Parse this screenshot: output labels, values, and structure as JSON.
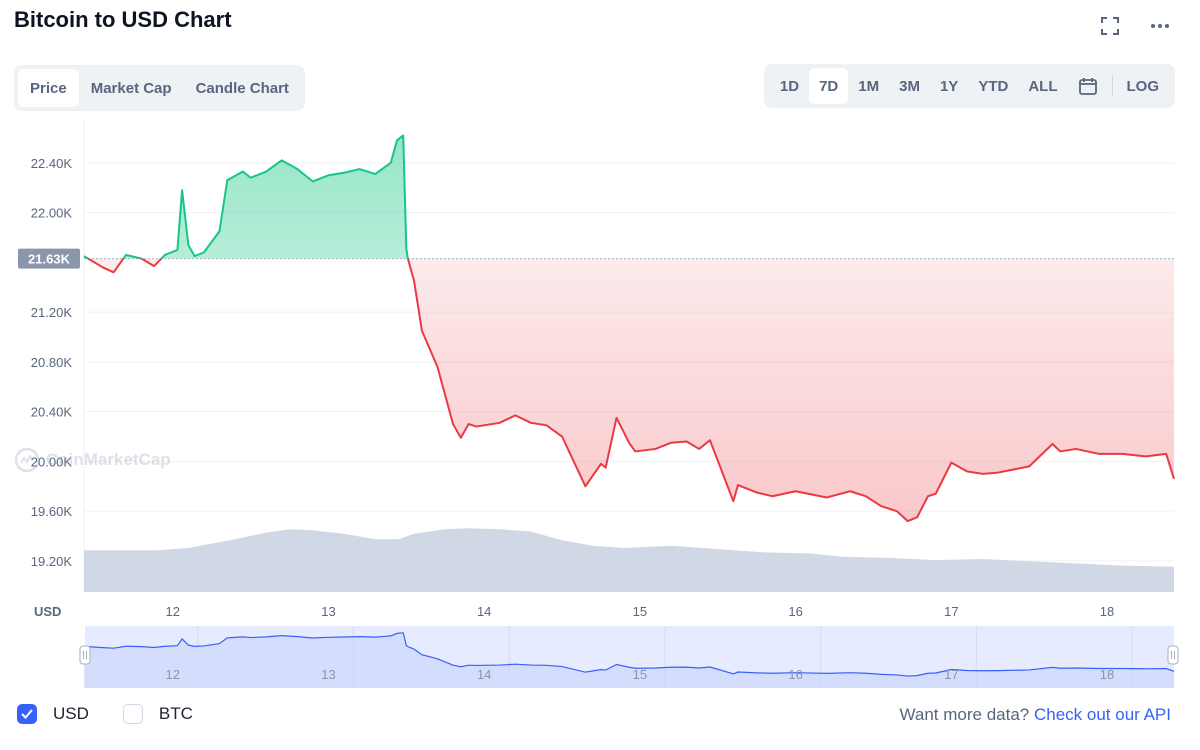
{
  "header": {
    "title": "Bitcoin to USD Chart",
    "fullscreen_icon": "fullscreen-icon",
    "more_icon": "more-dots-icon"
  },
  "tabs": [
    {
      "label": "Price",
      "active": true
    },
    {
      "label": "Market Cap",
      "active": false
    },
    {
      "label": "Candle Chart",
      "active": false
    }
  ],
  "ranges": [
    {
      "label": "1D",
      "active": false
    },
    {
      "label": "7D",
      "active": true
    },
    {
      "label": "1M",
      "active": false
    },
    {
      "label": "3M",
      "active": false
    },
    {
      "label": "1Y",
      "active": false
    },
    {
      "label": "YTD",
      "active": false
    },
    {
      "label": "ALL",
      "active": false
    }
  ],
  "calendar_icon": "calendar-icon",
  "log_label": "LOG",
  "watermark": "CoinMarketCap",
  "legend": [
    {
      "label": "USD",
      "checked": true
    },
    {
      "label": "BTC",
      "checked": false
    }
  ],
  "api": {
    "prefix": "Want more data? ",
    "link": "Check out our API"
  },
  "colors": {
    "up": "#16c784",
    "down": "#ea3943",
    "volume": "#cfd6e4",
    "navigator_line": "#3861fb",
    "navigator_fill": "#e6ebff",
    "accent": "#3861fb"
  },
  "chart_data": {
    "type": "line",
    "currency_label": "USD",
    "baseline": 21630,
    "baseline_label": "21.63K",
    "ylim": [
      18950,
      22680
    ],
    "yticks": [
      19200,
      19600,
      20000,
      20400,
      20800,
      21200,
      22000,
      22400
    ],
    "ytick_labels": [
      "19.20K",
      "19.60K",
      "20.00K",
      "20.40K",
      "20.80K",
      "21.20K",
      "22.00K",
      "22.40K"
    ],
    "xlim": [
      11.43,
      18.43
    ],
    "xticks": [
      12,
      13,
      14,
      15,
      16,
      17,
      18
    ],
    "xtick_labels": [
      "12",
      "13",
      "14",
      "15",
      "16",
      "17",
      "18"
    ],
    "grid": true,
    "series": [
      {
        "x": [
          11.43,
          11.55,
          11.62,
          11.7,
          11.8,
          11.88,
          11.95,
          12.03,
          12.06,
          12.1,
          12.14,
          12.2,
          12.3,
          12.35,
          12.45,
          12.5,
          12.6,
          12.7,
          12.8,
          12.9,
          13.0,
          13.1,
          13.2,
          13.3,
          13.4,
          13.44,
          13.48,
          13.5,
          13.51,
          13.55,
          13.6,
          13.7,
          13.8,
          13.85,
          13.9,
          13.95,
          14.1,
          14.2,
          14.3,
          14.4,
          14.5,
          14.65,
          14.75,
          14.78,
          14.85,
          14.93,
          14.97,
          15.1,
          15.2,
          15.3,
          15.38,
          15.45,
          15.6,
          15.63,
          15.65,
          15.75,
          15.85,
          16.0,
          16.2,
          16.35,
          16.45,
          16.55,
          16.65,
          16.72,
          16.78,
          16.85,
          16.9,
          17.0,
          17.1,
          17.2,
          17.3,
          17.5,
          17.65,
          17.7,
          17.8,
          17.95,
          18.1,
          18.25,
          18.38,
          18.43
        ],
        "y": [
          21650,
          21560,
          21520,
          21660,
          21630,
          21570,
          21660,
          21700,
          22180,
          21740,
          21650,
          21680,
          21850,
          22260,
          22330,
          22280,
          22330,
          22420,
          22350,
          22250,
          22300,
          22320,
          22350,
          22310,
          22400,
          22580,
          22620,
          21710,
          21630,
          21450,
          21050,
          20760,
          20300,
          20190,
          20300,
          20280,
          20310,
          20370,
          20310,
          20290,
          20200,
          19800,
          19980,
          19950,
          20350,
          20150,
          20080,
          20100,
          20150,
          20160,
          20100,
          20170,
          19680,
          19810,
          19800,
          19750,
          19720,
          19760,
          19710,
          19760,
          19720,
          19640,
          19600,
          19520,
          19550,
          19720,
          19740,
          19990,
          19920,
          19900,
          19910,
          19960,
          20140,
          20080,
          20100,
          20060,
          20060,
          20040,
          20060,
          19860
        ]
      }
    ],
    "volume_relative": {
      "x": [
        11.43,
        11.9,
        12.1,
        12.4,
        12.6,
        12.75,
        12.9,
        13.1,
        13.3,
        13.45,
        13.55,
        13.75,
        13.9,
        14.1,
        14.3,
        14.5,
        14.7,
        14.9,
        15.2,
        15.5,
        15.8,
        16.1,
        16.3,
        16.6,
        16.9,
        17.2,
        17.5,
        17.8,
        18.1,
        18.43
      ],
      "v": [
        0.38,
        0.38,
        0.4,
        0.48,
        0.54,
        0.57,
        0.56,
        0.53,
        0.48,
        0.48,
        0.53,
        0.57,
        0.58,
        0.57,
        0.55,
        0.47,
        0.42,
        0.4,
        0.42,
        0.39,
        0.36,
        0.35,
        0.32,
        0.31,
        0.29,
        0.3,
        0.28,
        0.26,
        0.24,
        0.23
      ]
    },
    "navigator": {
      "xtick_labels": [
        "12",
        "13",
        "14",
        "15",
        "16",
        "17",
        "18"
      ]
    }
  }
}
